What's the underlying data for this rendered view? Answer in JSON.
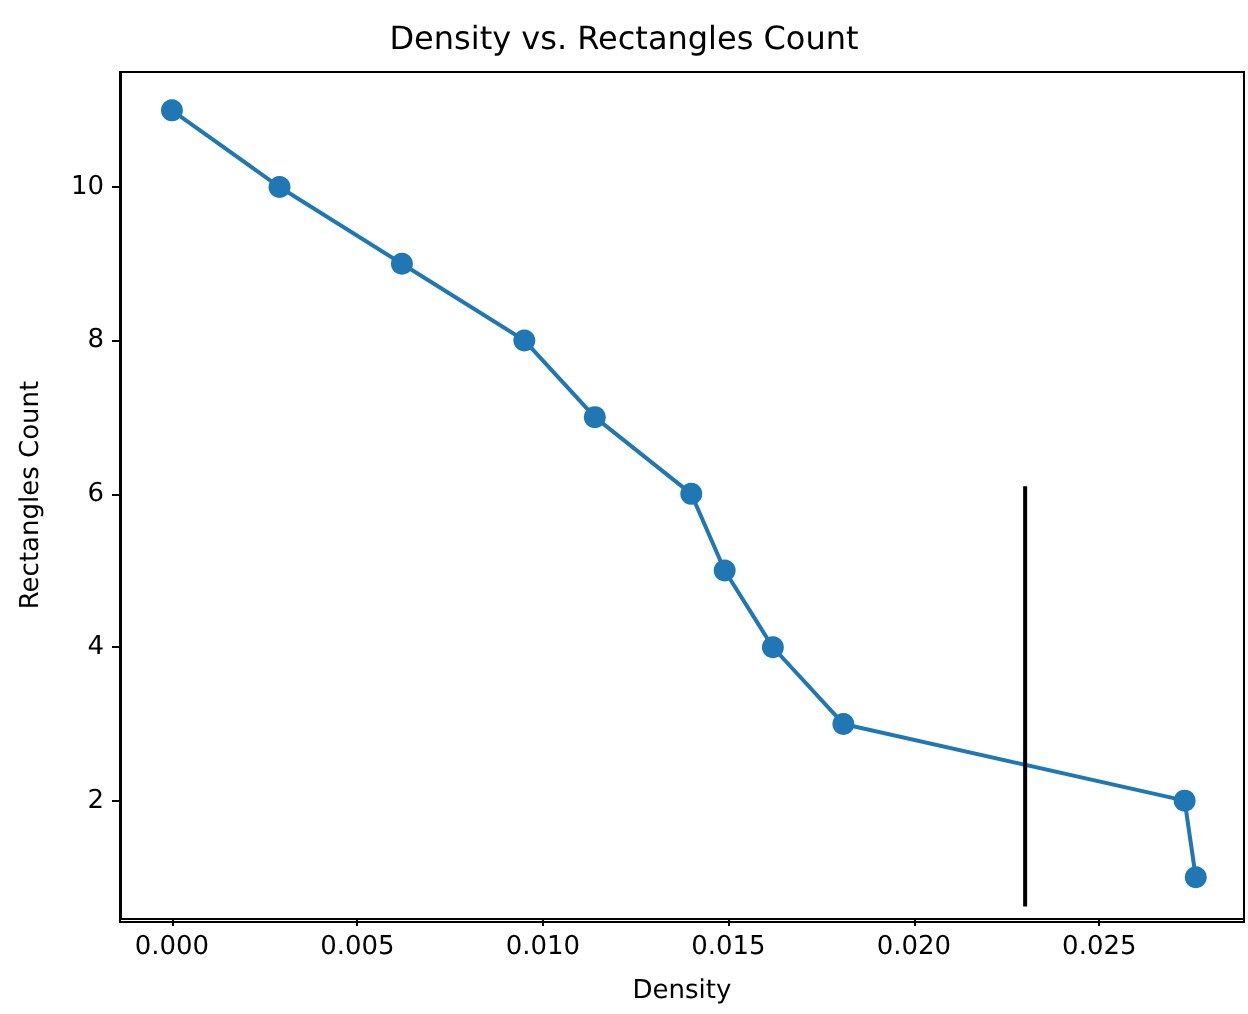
{
  "chart_data": {
    "type": "line",
    "title": "Density vs. Rectangles Count",
    "xlabel": "Density",
    "ylabel": "Rectangles Count",
    "xlim": [
      -0.0014,
      0.0289
    ],
    "ylim": [
      0.47,
      11.5
    ],
    "xticks": [
      {
        "value": 0,
        "label": "0.000"
      },
      {
        "value": 0.005,
        "label": "0.005"
      },
      {
        "value": 0.01,
        "label": "0.010"
      },
      {
        "value": 0.015,
        "label": "0.015"
      },
      {
        "value": 0.02,
        "label": "0.020"
      },
      {
        "value": 0.025,
        "label": "0.025"
      }
    ],
    "yticks": [
      2,
      4,
      6,
      8,
      10
    ],
    "marker": "circle",
    "line_style": "solid",
    "series": [
      {
        "color": "#1f77b4",
        "x": [
          0,
          0.0029,
          0.0062,
          0.0095,
          0.0114,
          0.014,
          0.0149,
          0.0162,
          0.0181,
          0.0273,
          0.0276
        ],
        "values": [
          11,
          10,
          9,
          8,
          7,
          6,
          5,
          4,
          3,
          2,
          1
        ]
      },
      {
        "color": "#000000",
        "marker": "none",
        "x": [
          0.023,
          0.023
        ],
        "values": [
          0.62,
          6.1
        ]
      }
    ]
  }
}
